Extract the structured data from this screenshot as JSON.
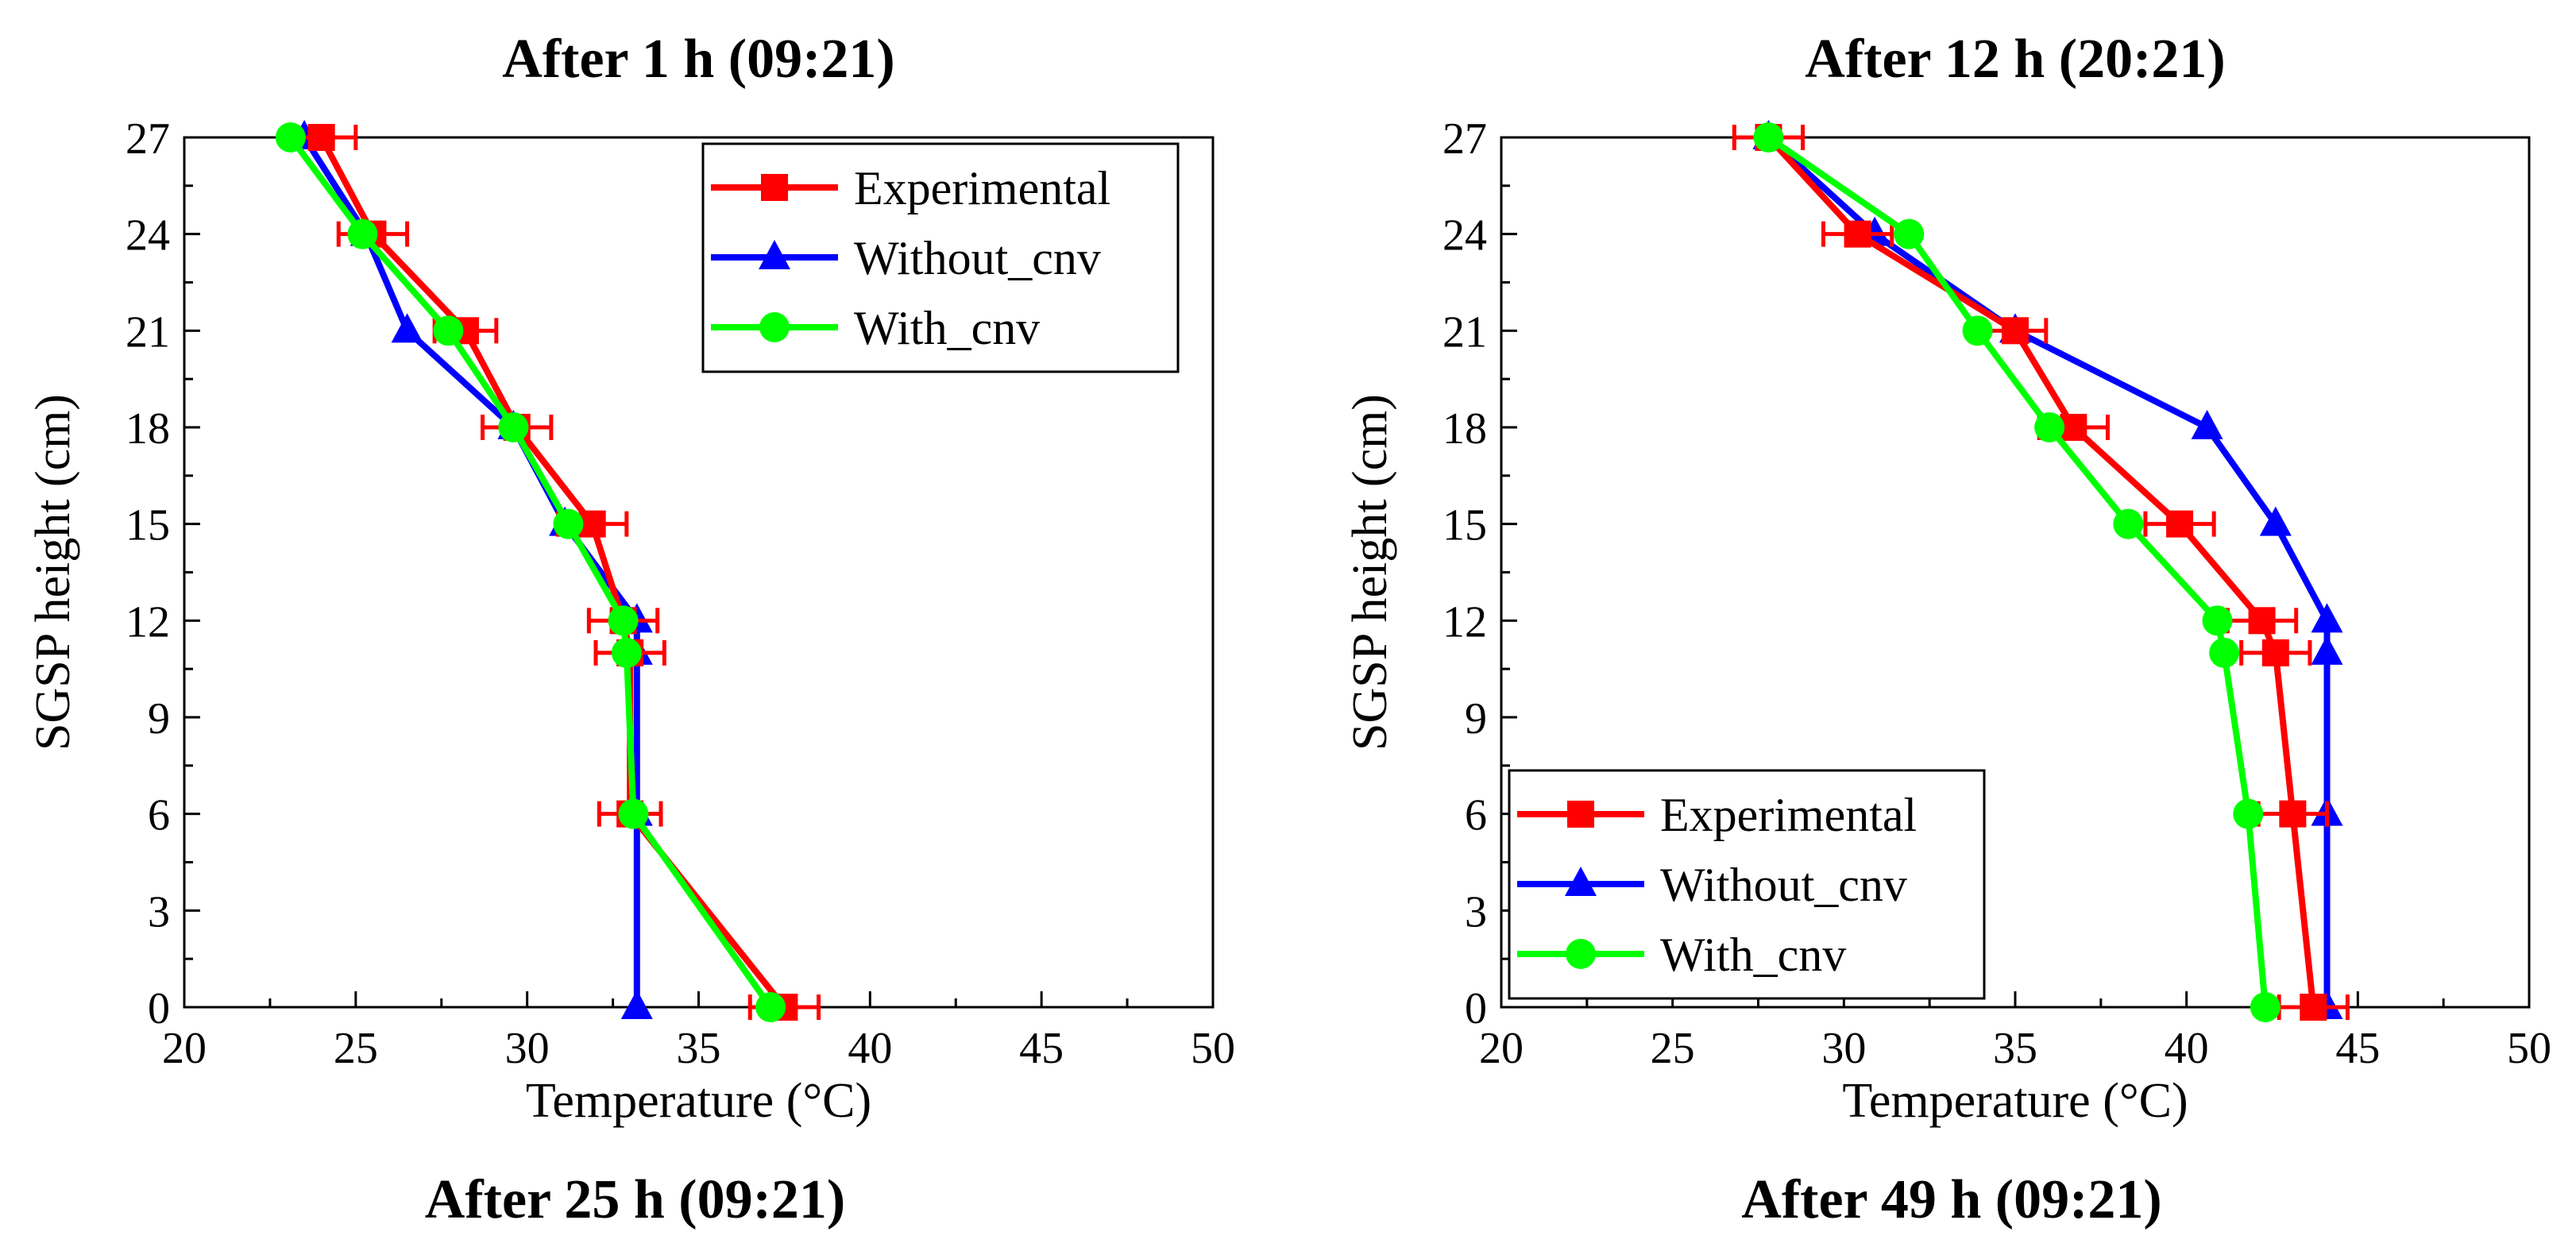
{
  "figure": {
    "bottom_titles": [
      "After 25 h (09:21)",
      "After 49 h (09:21)"
    ]
  },
  "chart_data": [
    {
      "type": "line",
      "title": "After 1 h (09:21)",
      "xlabel": "Temperature (°C)",
      "ylabel": "SGSP height (cm)",
      "xlim": [
        20,
        50
      ],
      "ylim": [
        0,
        27
      ],
      "xticks": [
        20,
        25,
        30,
        35,
        40,
        45,
        50
      ],
      "yticks": [
        0,
        3,
        6,
        9,
        12,
        15,
        18,
        21,
        24,
        27
      ],
      "legend_position": "top-right",
      "series": [
        {
          "name": "Experimental",
          "color": "#ff0000",
          "marker": "square",
          "x": [
            37.5,
            33.0,
            33.0,
            32.8,
            31.9,
            29.7,
            28.2,
            25.5,
            24.0
          ],
          "y": [
            0,
            6,
            11,
            12,
            15,
            18,
            21,
            24,
            27
          ],
          "xerr": [
            1.0,
            0.9,
            1.0,
            1.0,
            1.0,
            1.0,
            0.9,
            1.0,
            1.0
          ]
        },
        {
          "name": "Without_cnv",
          "color": "#0000ff",
          "marker": "triangle",
          "x": [
            33.2,
            33.2,
            33.2,
            33.2,
            31.1,
            29.6,
            26.5,
            25.3,
            23.5
          ],
          "y": [
            0,
            6,
            11,
            12,
            15,
            18,
            21,
            24,
            27
          ]
        },
        {
          "name": "With_cnv",
          "color": "#00ff00",
          "marker": "circle",
          "x": [
            37.1,
            33.1,
            32.9,
            32.8,
            31.2,
            29.6,
            27.7,
            25.2,
            23.1
          ],
          "y": [
            0,
            6,
            11,
            12,
            15,
            18,
            21,
            24,
            27
          ]
        }
      ]
    },
    {
      "type": "line",
      "title": "After 12 h (20:21)",
      "xlabel": "Temperature (°C)",
      "ylabel": "SGSP height (cm)",
      "xlim": [
        20,
        50
      ],
      "ylim": [
        0,
        27
      ],
      "xticks": [
        20,
        25,
        30,
        35,
        40,
        45,
        50
      ],
      "yticks": [
        0,
        3,
        6,
        9,
        12,
        15,
        18,
        21,
        24,
        27
      ],
      "legend_position": "bottom-left",
      "series": [
        {
          "name": "Experimental",
          "color": "#ff0000",
          "marker": "square",
          "x": [
            43.7,
            43.1,
            42.6,
            42.2,
            39.8,
            36.7,
            35.0,
            30.4,
            27.8
          ],
          "y": [
            0,
            6,
            11,
            12,
            15,
            18,
            21,
            24,
            27
          ],
          "xerr": [
            1.0,
            1.0,
            1.0,
            1.0,
            1.0,
            1.0,
            0.9,
            1.0,
            1.0
          ]
        },
        {
          "name": "Without_cnv",
          "color": "#0000ff",
          "marker": "triangle",
          "x": [
            44.1,
            44.1,
            44.1,
            44.1,
            42.6,
            40.6,
            35.0,
            30.9,
            27.8
          ],
          "y": [
            0,
            6,
            11,
            12,
            15,
            18,
            21,
            24,
            27
          ]
        },
        {
          "name": "With_cnv",
          "color": "#00ff00",
          "marker": "circle",
          "x": [
            42.3,
            41.8,
            41.1,
            40.9,
            38.3,
            36.0,
            33.9,
            31.9,
            27.8
          ],
          "y": [
            0,
            6,
            11,
            12,
            15,
            18,
            21,
            24,
            27
          ]
        }
      ]
    }
  ]
}
